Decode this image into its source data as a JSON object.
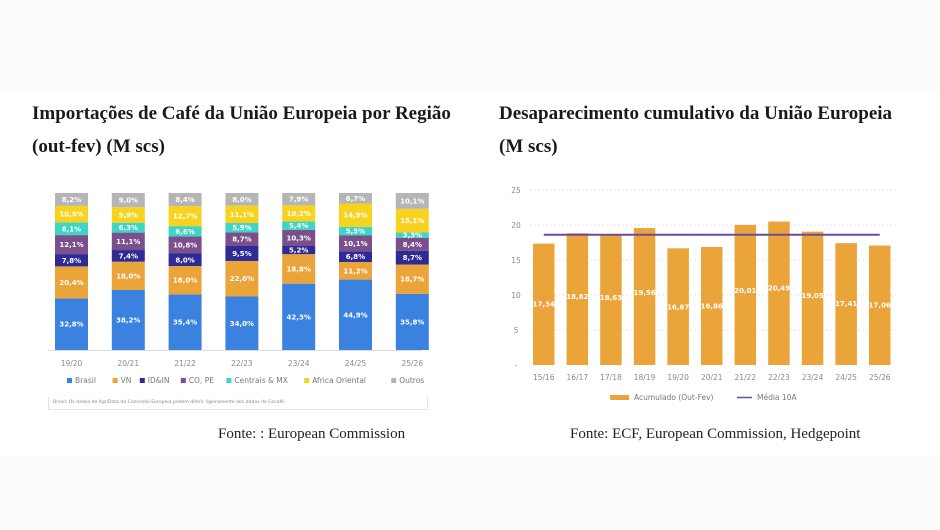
{
  "left_panel": {
    "title": "Importações de Café da União Europeia por Região (out-fev) (M scs)",
    "note": "Brasil: Os dados do AgriData da Comissão Europeia podem diferir ligeiramente dos dados do Cecafé",
    "source": "Fonte: : European Commission"
  },
  "right_panel": {
    "title": "Desaparecimento cumulativo da União Europeia (M scs)",
    "source": "Fonte: ECF, European Commission, Hedgepoint"
  },
  "chart_data": [
    {
      "type": "bar",
      "stacked": true,
      "percent": true,
      "title": "Importações de Café da União Europeia por Região (out-fev) (M scs)",
      "xlabel": "",
      "ylabel": "",
      "categories": [
        "19/20",
        "20/21",
        "21/22",
        "22/23",
        "23/24",
        "24/25",
        "25/26"
      ],
      "series": [
        {
          "name": "Brasil",
          "color": "#3b82e0",
          "values": [
            32.8,
            38.2,
            35.4,
            34.0,
            42.3,
            44.9,
            35.8
          ],
          "labels": [
            "32,8%",
            "38,2%",
            "35,4%",
            "34,0%",
            "42,3%",
            "44,9%",
            "35,8%"
          ]
        },
        {
          "name": "VN",
          "color": "#eba43a",
          "values": [
            20.4,
            18.0,
            18.0,
            22.6,
            18.8,
            11.2,
            18.7
          ],
          "labels": [
            "20,4%",
            "18,0%",
            "18,0%",
            "22,6%",
            "18,8%",
            "11,2%",
            "18,7%"
          ]
        },
        {
          "name": "ID&IN",
          "color": "#2e2a96",
          "values": [
            7.8,
            7.4,
            8.0,
            9.5,
            5.2,
            6.8,
            8.7
          ],
          "labels": [
            "7,8%",
            "7,4%",
            "8,0%",
            "9,5%",
            "5,2%",
            "6,8%",
            "8,7%"
          ]
        },
        {
          "name": "CO, PE",
          "color": "#7b4f8c",
          "values": [
            12.1,
            11.1,
            10.8,
            8.7,
            10.3,
            10.1,
            8.4
          ],
          "labels": [
            "12,1%",
            "11,1%",
            "10,8%",
            "8,7%",
            "10,3%",
            "10,1%",
            "8,4%"
          ]
        },
        {
          "name": "Centrais & MX",
          "color": "#3fd4c4",
          "values": [
            8.1,
            6.3,
            6.6,
            5.9,
            5.4,
            5.5,
            3.3
          ],
          "labels": [
            "8,1%",
            "6,3%",
            "6,6%",
            "5,9%",
            "5,4%",
            "5,5%",
            "3,3%"
          ]
        },
        {
          "name": "Africa Oriental",
          "color": "#f7d320",
          "values": [
            10.5,
            9.9,
            12.7,
            11.1,
            10.2,
            14.9,
            15.1
          ],
          "labels": [
            "10,5%",
            "9,9%",
            "12,7%",
            "11,1%",
            "10,2%",
            "14,9%",
            "15,1%"
          ]
        },
        {
          "name": "Outros",
          "color": "#b5b5b5",
          "values": [
            8.2,
            9.0,
            8.4,
            8.0,
            7.9,
            6.7,
            10.1
          ],
          "labels": [
            "8,2%",
            "9,0%",
            "8,4%",
            "8,0%",
            "7,9%",
            "6,7%",
            "10,1%"
          ]
        }
      ],
      "ylim": [
        0,
        100
      ],
      "grid": false,
      "legend": "bottom"
    },
    {
      "type": "bar",
      "title": "Desaparecimento cumulativo da União Europeia (M scs)",
      "xlabel": "",
      "ylabel": "",
      "categories": [
        "15/16",
        "16/17",
        "17/18",
        "18/19",
        "19/20",
        "20/21",
        "21/22",
        "22/23",
        "23/24",
        "24/25",
        "25/26"
      ],
      "series": [
        {
          "name": "Acumulado (Out-Fev)",
          "type": "bar",
          "color": "#eba43a",
          "values": [
            17.34,
            18.82,
            18.63,
            19.56,
            16.67,
            16.86,
            20.01,
            20.49,
            19.05,
            17.41,
            17.06
          ],
          "labels": [
            "17,34",
            "18,82",
            "18,63",
            "19,56",
            "16,67",
            "16,86",
            "20,01",
            "20,49",
            "19,05",
            "17,41",
            "17,06"
          ]
        },
        {
          "name": "Média 10A",
          "type": "line",
          "color": "#6a4c9c",
          "value": 18.6
        }
      ],
      "yticks": [
        "-",
        "5",
        "10",
        "15",
        "20",
        "25"
      ],
      "ylim": [
        0,
        25
      ],
      "grid": true,
      "legend": "bottom"
    }
  ]
}
